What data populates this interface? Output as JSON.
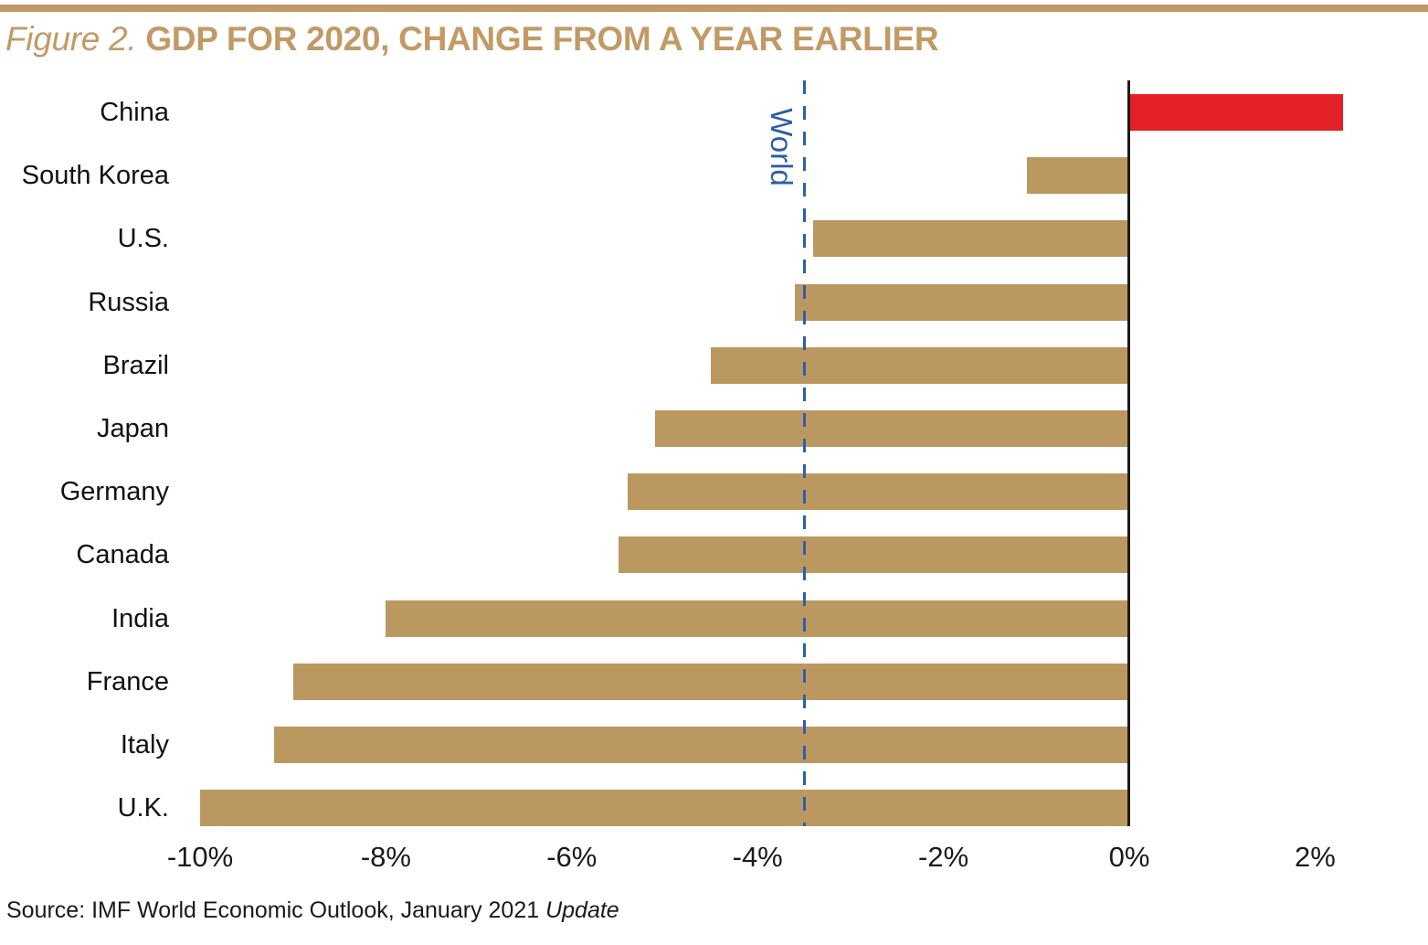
{
  "page": {
    "title_prefix": "Figure 2.",
    "title_main": "GDP FOR 2020, CHANGE FROM A YEAR EARLIER",
    "source_prefix": "Source: IMF World Economic Outlook, January 2021 ",
    "source_italic": "Update"
  },
  "colors": {
    "gold_title": "#C29A66",
    "gold_rule": "#C29A66",
    "bar_tan": "#BC9861",
    "bar_red": "#E32126",
    "blue": "#2E5FA6",
    "axis_black": "#1A1A1A",
    "label_black": "#111111"
  },
  "chart_data": {
    "type": "bar",
    "orientation": "horizontal",
    "title": "GDP FOR 2020, CHANGE FROM A YEAR EARLIER",
    "categories": [
      "China",
      "South Korea",
      "U.S.",
      "Russia",
      "Brazil",
      "Japan",
      "Germany",
      "Canada",
      "India",
      "France",
      "Italy",
      "U.K."
    ],
    "values": [
      2.3,
      -1.1,
      -3.4,
      -3.6,
      -4.5,
      -5.1,
      -5.4,
      -5.5,
      -8.0,
      -9.0,
      -9.2,
      -10.0
    ],
    "unit": "%",
    "xlim": [
      -10,
      2
    ],
    "xticks": [
      -10,
      -8,
      -6,
      -4,
      -2,
      0,
      2
    ],
    "xtick_labels": [
      "-10%",
      "-8%",
      "-6%",
      "-4%",
      "-2%",
      "0%",
      "2%"
    ],
    "reference_line": {
      "label": "World",
      "value": -3.5,
      "style": "dashed"
    },
    "highlight_category": "China",
    "grid": false,
    "legend": "none",
    "source": "Source: IMF World Economic Outlook, January 2021 Update"
  }
}
